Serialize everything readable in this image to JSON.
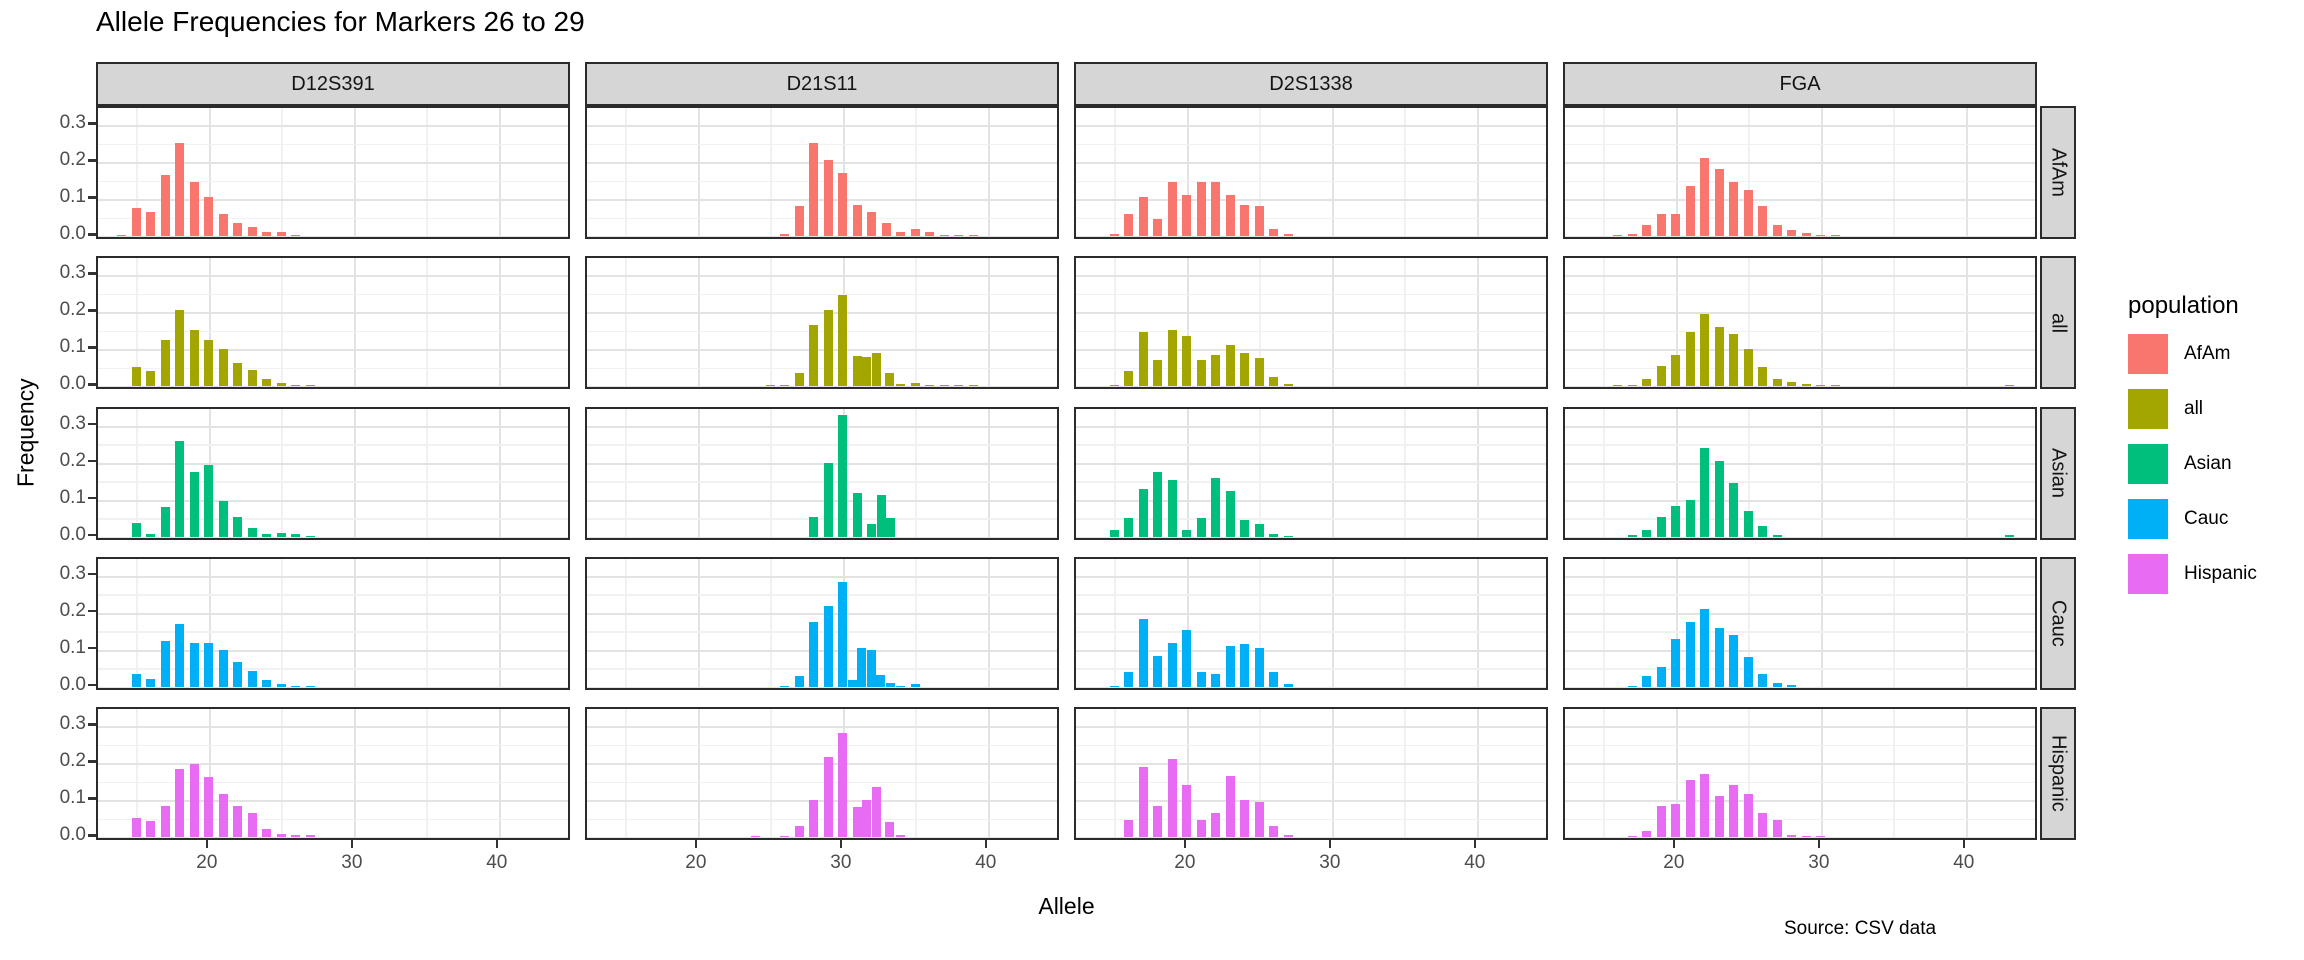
{
  "title": "Allele Frequencies for Markers 26 to 29",
  "source_note": "Source: CSV data",
  "axes": {
    "x_label": "Allele",
    "y_label": "Frequency",
    "x_ticks": [
      "20",
      "30",
      "40"
    ],
    "y_ticks": [
      "0.0",
      "0.1",
      "0.2",
      "0.3"
    ]
  },
  "legend": {
    "title": "population",
    "items": [
      {
        "label": "AfAm",
        "color": "#F8766D"
      },
      {
        "label": "all",
        "color": "#A3A500"
      },
      {
        "label": "Asian",
        "color": "#00BF7D"
      },
      {
        "label": "Cauc",
        "color": "#00B0F6"
      },
      {
        "label": "Hispanic",
        "color": "#E76BF3"
      }
    ]
  },
  "chart_data": {
    "type": "bar",
    "title": "Allele Frequencies for Markers 26 to 29",
    "xlabel": "Allele",
    "ylabel": "Frequency",
    "x_range": [
      12.35,
      45.05
    ],
    "ylim": [
      0,
      0.346
    ],
    "x_tick_values": [
      20,
      30,
      40
    ],
    "x_minor_gridlines": [
      15,
      25,
      35,
      45
    ],
    "y_tick_values": [
      0.0,
      0.1,
      0.2,
      0.3
    ],
    "y_minor_gridlines": [
      0.05,
      0.15,
      0.25
    ],
    "grid": "on",
    "legend_position": "right",
    "facet_columns": [
      "D12S391",
      "D21S11",
      "D2S1338",
      "FGA"
    ],
    "facet_rows": [
      "AfAm",
      "all",
      "Asian",
      "Cauc",
      "Hispanic"
    ],
    "series": {
      "D12S391": {
        "AfAm": {
          "alleles": [
            14,
            15,
            16,
            17,
            18,
            19,
            20,
            21,
            22,
            23,
            24,
            25,
            26
          ],
          "freqs": [
            0.004,
            0.075,
            0.065,
            0.165,
            0.25,
            0.145,
            0.105,
            0.06,
            0.035,
            0.025,
            0.01,
            0.01,
            0.003
          ]
        },
        "all": {
          "alleles": [
            15,
            16,
            17,
            18,
            19,
            20,
            21,
            22,
            23,
            24,
            25,
            26,
            27
          ],
          "freqs": [
            0.05,
            0.04,
            0.123,
            0.205,
            0.15,
            0.123,
            0.099,
            0.063,
            0.043,
            0.02,
            0.009,
            0.004,
            0.003
          ]
        },
        "Asian": {
          "alleles": [
            15,
            16,
            17,
            18,
            19,
            20,
            21,
            22,
            23,
            24,
            25,
            26,
            27
          ],
          "freqs": [
            0.037,
            0.007,
            0.081,
            0.26,
            0.175,
            0.195,
            0.097,
            0.054,
            0.024,
            0.009,
            0.012,
            0.008,
            0.004
          ]
        },
        "Cauc": {
          "alleles": [
            15,
            16,
            17,
            18,
            19,
            20,
            21,
            22,
            23,
            24,
            25,
            26,
            27
          ],
          "freqs": [
            0.035,
            0.022,
            0.125,
            0.17,
            0.12,
            0.12,
            0.1,
            0.068,
            0.043,
            0.018,
            0.008,
            0.003,
            0.003
          ]
        },
        "Hispanic": {
          "alleles": [
            15,
            16,
            17,
            18,
            19,
            20,
            21,
            22,
            23,
            24,
            25,
            26,
            27
          ],
          "freqs": [
            0.05,
            0.043,
            0.085,
            0.185,
            0.198,
            0.162,
            0.115,
            0.085,
            0.065,
            0.022,
            0.007,
            0.005,
            0.005
          ]
        }
      },
      "D21S11": {
        "AfAm": {
          "alleles": [
            26,
            27,
            28,
            29,
            30,
            31,
            32,
            33,
            34,
            35,
            36,
            37,
            38,
            39
          ],
          "freqs": [
            0.005,
            0.08,
            0.25,
            0.205,
            0.17,
            0.085,
            0.065,
            0.035,
            0.01,
            0.02,
            0.01,
            0.004,
            0.004,
            0.004
          ]
        },
        "all": {
          "alleles": [
            25,
            26,
            27,
            28,
            29,
            30,
            31,
            31.2,
            32.2,
            33.2,
            34,
            35,
            36,
            37,
            38,
            39
          ],
          "freqs": [
            0.003,
            0.004,
            0.035,
            0.165,
            0.205,
            0.245,
            0.08,
            0.078,
            0.09,
            0.035,
            0.005,
            0.008,
            0.004,
            0.003,
            0.003,
            0.003
          ]
        },
        "Asian": {
          "alleles": [
            28,
            29,
            30,
            31,
            32,
            32.2,
            33.2
          ],
          "freqs": [
            0.055,
            0.2,
            0.33,
            0.12,
            0.034,
            0.113,
            0.05
          ]
        },
        "Cauc": {
          "alleles": [
            26,
            27,
            28,
            29,
            30,
            30.2,
            31,
            31.2,
            32.2,
            33.2,
            34,
            35
          ],
          "freqs": [
            0.004,
            0.03,
            0.175,
            0.22,
            0.285,
            0.018,
            0.105,
            0.1,
            0.032,
            0.01,
            0.004,
            0.008
          ]
        },
        "Hispanic": {
          "alleles": [
            24,
            26,
            27,
            28,
            29,
            30,
            31,
            31.2,
            32.2,
            33.2,
            34
          ],
          "freqs": [
            0.003,
            0.003,
            0.03,
            0.1,
            0.215,
            0.28,
            0.08,
            0.1,
            0.135,
            0.04,
            0.005
          ]
        }
      },
      "D2S1338": {
        "AfAm": {
          "alleles": [
            15,
            16,
            17,
            18,
            19,
            20,
            21,
            22,
            23,
            24,
            25,
            26,
            27
          ],
          "freqs": [
            0.005,
            0.06,
            0.105,
            0.045,
            0.145,
            0.11,
            0.145,
            0.145,
            0.11,
            0.085,
            0.08,
            0.02,
            0.005
          ]
        },
        "all": {
          "alleles": [
            15,
            16,
            17,
            18,
            19,
            20,
            21,
            22,
            23,
            24,
            25,
            26,
            27
          ],
          "freqs": [
            0.003,
            0.04,
            0.145,
            0.07,
            0.15,
            0.135,
            0.07,
            0.085,
            0.11,
            0.09,
            0.075,
            0.025,
            0.005
          ]
        },
        "Asian": {
          "alleles": [
            15,
            16,
            17,
            18,
            19,
            20,
            21,
            22,
            23,
            24,
            25,
            26,
            27
          ],
          "freqs": [
            0.02,
            0.05,
            0.13,
            0.175,
            0.155,
            0.018,
            0.05,
            0.16,
            0.125,
            0.045,
            0.035,
            0.007,
            0.003
          ]
        },
        "Cauc": {
          "alleles": [
            15,
            16,
            17,
            18,
            19,
            20,
            21,
            22,
            23,
            24,
            25,
            26,
            27
          ],
          "freqs": [
            0.004,
            0.04,
            0.185,
            0.085,
            0.12,
            0.155,
            0.04,
            0.035,
            0.11,
            0.115,
            0.105,
            0.04,
            0.008
          ]
        },
        "Hispanic": {
          "alleles": [
            16,
            17,
            18,
            19,
            20,
            21,
            22,
            23,
            24,
            25,
            26,
            27
          ],
          "freqs": [
            0.045,
            0.19,
            0.085,
            0.21,
            0.14,
            0.045,
            0.065,
            0.165,
            0.1,
            0.095,
            0.03,
            0.005
          ]
        }
      },
      "FGA": {
        "AfAm": {
          "alleles": [
            16,
            17,
            18,
            19,
            20,
            21,
            22,
            23,
            24,
            25,
            26,
            27,
            28,
            29,
            30,
            31
          ],
          "freqs": [
            0.004,
            0.005,
            0.03,
            0.06,
            0.06,
            0.135,
            0.21,
            0.18,
            0.145,
            0.125,
            0.08,
            0.03,
            0.015,
            0.007,
            0.004,
            0.003
          ]
        },
        "all": {
          "alleles": [
            16,
            17,
            18,
            19,
            20,
            21,
            22,
            23,
            24,
            25,
            26,
            27,
            28,
            29,
            30,
            31,
            43
          ],
          "freqs": [
            0.003,
            0.004,
            0.02,
            0.055,
            0.085,
            0.145,
            0.195,
            0.16,
            0.14,
            0.1,
            0.05,
            0.02,
            0.01,
            0.005,
            0.003,
            0.002,
            0.003
          ]
        },
        "Asian": {
          "alleles": [
            17,
            18,
            19,
            20,
            21,
            22,
            23,
            24,
            25,
            26,
            27,
            43
          ],
          "freqs": [
            0.005,
            0.02,
            0.055,
            0.085,
            0.1,
            0.24,
            0.205,
            0.145,
            0.07,
            0.03,
            0.005,
            0.005
          ]
        },
        "Cauc": {
          "alleles": [
            17,
            18,
            19,
            20,
            21,
            22,
            23,
            24,
            25,
            26,
            27,
            28
          ],
          "freqs": [
            0.004,
            0.03,
            0.055,
            0.13,
            0.175,
            0.21,
            0.16,
            0.14,
            0.08,
            0.035,
            0.012,
            0.005
          ]
        },
        "Hispanic": {
          "alleles": [
            17,
            18,
            19,
            20,
            21,
            22,
            23,
            24,
            25,
            26,
            27,
            28,
            29,
            30
          ],
          "freqs": [
            0.003,
            0.015,
            0.085,
            0.09,
            0.155,
            0.17,
            0.11,
            0.14,
            0.115,
            0.065,
            0.045,
            0.005,
            0.003,
            0.003
          ]
        }
      }
    }
  }
}
